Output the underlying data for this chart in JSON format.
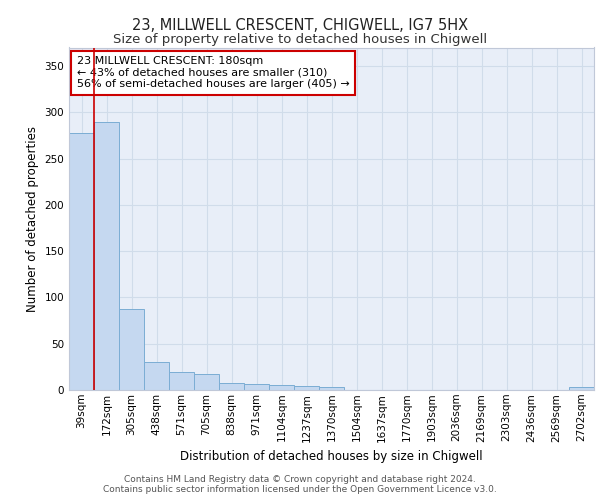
{
  "title1": "23, MILLWELL CRESCENT, CHIGWELL, IG7 5HX",
  "title2": "Size of property relative to detached houses in Chigwell",
  "xlabel": "Distribution of detached houses by size in Chigwell",
  "ylabel": "Number of detached properties",
  "categories": [
    "39sqm",
    "172sqm",
    "305sqm",
    "438sqm",
    "571sqm",
    "705sqm",
    "838sqm",
    "971sqm",
    "1104sqm",
    "1237sqm",
    "1370sqm",
    "1504sqm",
    "1637sqm",
    "1770sqm",
    "1903sqm",
    "2036sqm",
    "2169sqm",
    "2303sqm",
    "2436sqm",
    "2569sqm",
    "2702sqm"
  ],
  "values": [
    278,
    290,
    87,
    30,
    19,
    17,
    8,
    6,
    5,
    4,
    3,
    0,
    0,
    0,
    0,
    0,
    0,
    0,
    0,
    0,
    3
  ],
  "bar_color": "#c5d8f0",
  "bar_edge_color": "#7badd4",
  "grid_color": "#d0dcea",
  "background_color": "#e8eef8",
  "red_line_x": 1.0,
  "property_line_color": "#cc0000",
  "ylim": [
    0,
    370
  ],
  "yticks": [
    0,
    50,
    100,
    150,
    200,
    250,
    300,
    350
  ],
  "annotation_text": "23 MILLWELL CRESCENT: 180sqm\n← 43% of detached houses are smaller (310)\n56% of semi-detached houses are larger (405) →",
  "annotation_box_color": "#ffffff",
  "annotation_box_edge": "#cc0000",
  "footer_text": "Contains HM Land Registry data © Crown copyright and database right 2024.\nContains public sector information licensed under the Open Government Licence v3.0.",
  "title1_fontsize": 10.5,
  "title2_fontsize": 9.5,
  "xlabel_fontsize": 8.5,
  "ylabel_fontsize": 8.5,
  "tick_fontsize": 7.5,
  "annotation_fontsize": 8,
  "footer_fontsize": 6.5
}
